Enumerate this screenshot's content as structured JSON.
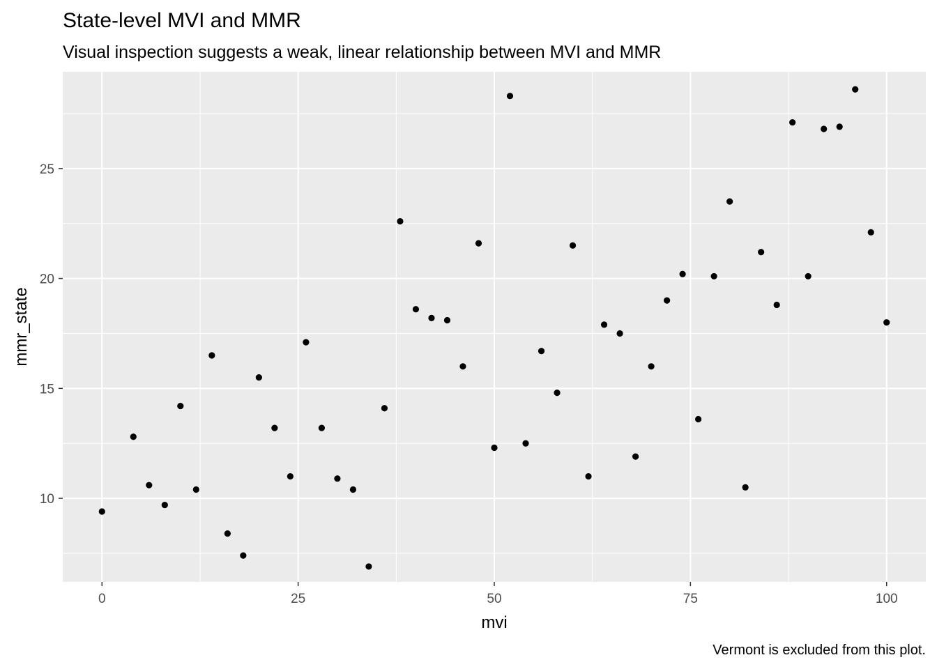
{
  "chart_data": {
    "type": "scatter",
    "title": "State-level MVI and MMR",
    "subtitle": "Visual inspection suggests a weak, linear relationship between MVI and MMR",
    "caption": "Vermont is excluded from this plot.",
    "xlabel": "mvi",
    "ylabel": "mmr_state",
    "xlim": [
      -5,
      105
    ],
    "ylim": [
      6.2,
      29.4
    ],
    "x_ticks": [
      0,
      25,
      50,
      75,
      100
    ],
    "x_tick_labels": [
      "0",
      "25",
      "50",
      "75",
      "100"
    ],
    "y_ticks": [
      10,
      15,
      20,
      25
    ],
    "y_tick_labels": [
      "10",
      "15",
      "20",
      "25"
    ],
    "grid": true,
    "colors": {
      "panel_background": "#ebebeb",
      "grid_line": "#ffffff",
      "point": "#000000",
      "tick_text": "#4d4d4d"
    },
    "series": [
      {
        "x": [
          0,
          4,
          6,
          8,
          10,
          12,
          14,
          16,
          18,
          20,
          22,
          24,
          26,
          28,
          30,
          32,
          34,
          36,
          38,
          40,
          42,
          44,
          46,
          48,
          50,
          52,
          54,
          56,
          58,
          60,
          62,
          64,
          66,
          68,
          70,
          72,
          74,
          76,
          78,
          80,
          82,
          84,
          86,
          88,
          90,
          92,
          94,
          96,
          98,
          100
        ],
        "y": [
          9.4,
          12.8,
          10.6,
          9.7,
          14.2,
          10.4,
          16.5,
          8.4,
          7.4,
          15.5,
          13.2,
          11.0,
          17.1,
          13.2,
          10.9,
          10.4,
          6.9,
          14.1,
          22.6,
          18.6,
          18.2,
          18.1,
          16.0,
          21.6,
          12.3,
          28.3,
          12.5,
          16.7,
          14.8,
          21.5,
          11.0,
          17.9,
          17.5,
          11.9,
          16.0,
          19.0,
          20.2,
          13.6,
          20.1,
          23.5,
          10.5,
          21.2,
          18.8,
          27.1,
          20.1,
          26.8,
          26.9,
          28.6,
          22.1,
          18.0
        ]
      }
    ]
  }
}
